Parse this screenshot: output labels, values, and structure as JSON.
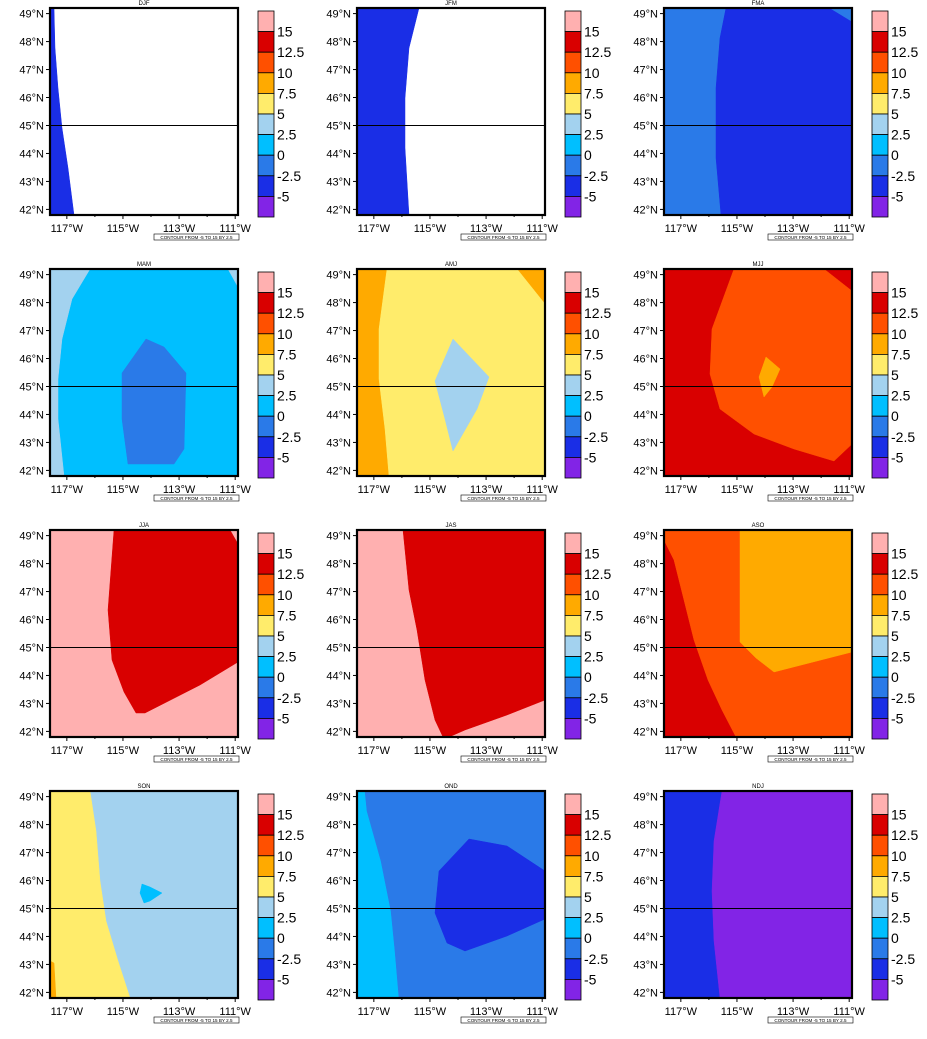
{
  "figure": {
    "contour_note": "CONTOUR FROM -5 TO 15 BY 2.5",
    "x_ticks": [
      "117°W",
      "115°W",
      "113°W",
      "111°W"
    ],
    "y_ticks": [
      "42°N",
      "43°N",
      "44°N",
      "45°N",
      "46°N",
      "47°N",
      "48°N",
      "49°N"
    ],
    "colorbar_labels": [
      "15",
      "12.5",
      "10",
      "7.5",
      "5",
      "2.5",
      "0",
      "-2.5",
      "-5"
    ],
    "colors": {
      "below_-2.5": "#8224e6",
      "-2.5_to_0": "#1a2ee6",
      "0_to_2.5": "#2a7ae8",
      "2.5_to_5": "#00bfff",
      "5_to_7.5": "#a3d2ef",
      "7.5_to_10": "#ffec6b",
      "10_to_12.5": "#ffaa00",
      "12.5_to_15": "#ff5000",
      "15_to_17.5": "#d90000",
      "above_17.5": "#ffb0b0"
    },
    "reference_latitude": "45°N"
  },
  "panels": [
    {
      "title": "DJF"
    },
    {
      "title": "JFM"
    },
    {
      "title": "FMA"
    },
    {
      "title": "MAM"
    },
    {
      "title": "AMJ"
    },
    {
      "title": "MJJ"
    },
    {
      "title": "JJA"
    },
    {
      "title": "JAS"
    },
    {
      "title": "ASO"
    },
    {
      "title": "SON"
    },
    {
      "title": "OND"
    },
    {
      "title": "NDJ"
    }
  ]
}
